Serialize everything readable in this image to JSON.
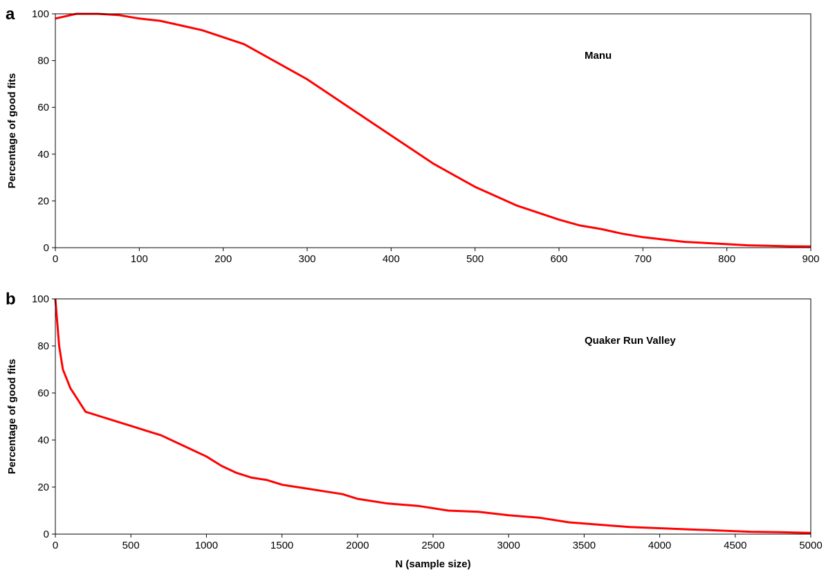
{
  "chart_data": [
    {
      "type": "line",
      "label": "a",
      "ylabel": "Percentage of good fits",
      "annotation": "Manu",
      "x": [
        0,
        25,
        50,
        75,
        100,
        125,
        150,
        175,
        200,
        225,
        250,
        275,
        300,
        325,
        350,
        375,
        400,
        425,
        450,
        475,
        500,
        525,
        550,
        575,
        600,
        625,
        650,
        675,
        700,
        725,
        750,
        775,
        800,
        825,
        850,
        875,
        900
      ],
      "series": [
        {
          "color": "#ff0000",
          "values": [
            98,
            100,
            100,
            99.5,
            98,
            97,
            95,
            93,
            90,
            87,
            82,
            77,
            72,
            66,
            60,
            54,
            48,
            42,
            36,
            31,
            26,
            22,
            18,
            15,
            12,
            9.5,
            8,
            6,
            4.5,
            3.5,
            2.5,
            2,
            1.5,
            1,
            0.8,
            0.6,
            0.5
          ]
        }
      ],
      "xlim": [
        0,
        900
      ],
      "xticks": [
        0,
        100,
        200,
        300,
        400,
        500,
        600,
        700,
        800,
        900
      ],
      "ylim": [
        0,
        100
      ],
      "yticks": [
        0,
        20,
        40,
        60,
        80,
        100
      ]
    },
    {
      "type": "line",
      "label": "b",
      "ylabel": "Percentage of good fits",
      "xlabel": "N (sample size)",
      "annotation": "Quaker Run Valley",
      "x": [
        0,
        25,
        50,
        100,
        150,
        200,
        300,
        400,
        500,
        600,
        700,
        800,
        900,
        1000,
        1100,
        1200,
        1300,
        1400,
        1500,
        1600,
        1700,
        1800,
        1900,
        2000,
        2200,
        2400,
        2600,
        2800,
        3000,
        3200,
        3400,
        3600,
        3800,
        4000,
        4200,
        4400,
        4600,
        4800,
        5000
      ],
      "series": [
        {
          "color": "#ff0000",
          "values": [
            100,
            80,
            70,
            62,
            57,
            52,
            50,
            48,
            46,
            44,
            42,
            39,
            36,
            33,
            29,
            26,
            24,
            23,
            21,
            20,
            19,
            18,
            17,
            15,
            13,
            12,
            10,
            9.5,
            8,
            7,
            5,
            4,
            3,
            2.5,
            2,
            1.5,
            1,
            0.8,
            0.5
          ]
        }
      ],
      "xlim": [
        0,
        5000
      ],
      "xticks": [
        0,
        500,
        1000,
        1500,
        2000,
        2500,
        3000,
        3500,
        4000,
        4500,
        5000
      ],
      "ylim": [
        0,
        100
      ],
      "yticks": [
        0,
        20,
        40,
        60,
        80,
        100
      ]
    }
  ]
}
